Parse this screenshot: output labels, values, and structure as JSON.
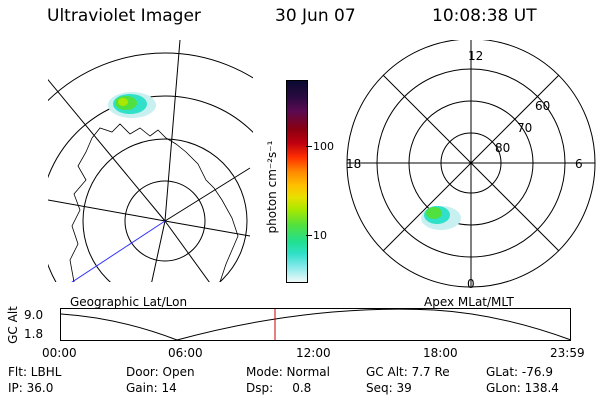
{
  "header": {
    "title": "Ultraviolet Imager",
    "date": "30 Jun 07",
    "time": "10:08:38 UT"
  },
  "left_map": {
    "caption": "Geographic Lat/Lon"
  },
  "right_map": {
    "caption": "Apex MLat/MLT",
    "mlt_labels": {
      "top": "12",
      "left": "18",
      "right": "6",
      "bottom": "0"
    },
    "lat_labels": [
      "60",
      "70",
      "80"
    ]
  },
  "colorbar": {
    "unit_label": "photon cm⁻²s⁻¹",
    "ticks": [
      "100",
      "10"
    ],
    "colors": [
      "#0a0a30",
      "#2a0a40",
      "#5a0a50",
      "#8a0010",
      "#c00010",
      "#ff3000",
      "#ff8800",
      "#ffc000",
      "#e8e000",
      "#a8e800",
      "#50e040",
      "#20e090",
      "#30e0c8",
      "#80e8e8",
      "#c8f0f0",
      "#f0f8f8"
    ]
  },
  "timeline": {
    "y_label": "GC Alt",
    "y_ticks": [
      "9.0",
      "1.8"
    ],
    "x_ticks": [
      "00:00",
      "06:00",
      "12:00",
      "18:00",
      "23:59"
    ],
    "marker_color": "#cc0000"
  },
  "status": {
    "row1": [
      {
        "label": "Flt: LBHL"
      },
      {
        "label": "Door: Open"
      },
      {
        "label": "Mode: Normal"
      },
      {
        "label": "GC Alt: 7.7 Re"
      },
      {
        "label": "GLat: -76.9"
      }
    ],
    "row2": [
      {
        "label": "IP: 36.0"
      },
      {
        "label": "Gain: 14"
      },
      {
        "label": "Dsp:     0.8"
      },
      {
        "label": "Seq: 39"
      },
      {
        "label": "GLon: 138.4"
      }
    ]
  }
}
